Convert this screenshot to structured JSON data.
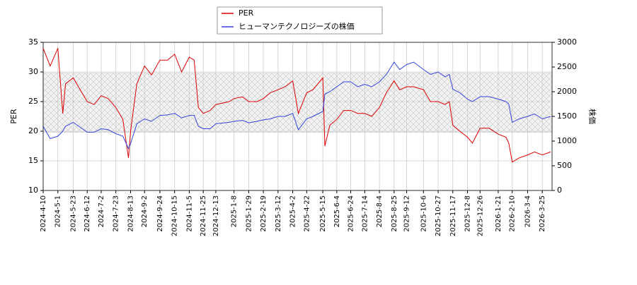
{
  "chart_data": {
    "type": "line",
    "x": [
      "2024-4-10",
      "2024-4-20",
      "2024-5-1",
      "2024-5-8",
      "2024-5-12",
      "2024-5-23",
      "2024-6-2",
      "2024-6-12",
      "2024-6-22",
      "2024-7-2",
      "2024-7-12",
      "2024-7-23",
      "2024-8-2",
      "2024-8-10",
      "2024-8-13",
      "2024-8-22",
      "2024-9-2",
      "2024-9-12",
      "2024-9-24",
      "2024-10-5",
      "2024-10-15",
      "2024-10-25",
      "2024-11-5",
      "2024-11-12",
      "2024-11-18",
      "2024-11-25",
      "2024-12-5",
      "2024-12-13",
      "2025-1-1",
      "2025-1-8",
      "2025-1-20",
      "2025-1-29",
      "2025-2-10",
      "2025-2-19",
      "2025-3-1",
      "2025-3-12",
      "2025-3-22",
      "2025-4-2",
      "2025-4-10",
      "2025-4-22",
      "2025-5-1",
      "2025-5-15",
      "2025-5-18",
      "2025-5-25",
      "2025-6-4",
      "2025-6-14",
      "2025-6-24",
      "2025-7-4",
      "2025-7-14",
      "2025-7-24",
      "2025-8-4",
      "2025-8-14",
      "2025-8-25",
      "2025-9-2",
      "2025-9-12",
      "2025-9-22",
      "2025-10-6",
      "2025-10-16",
      "2025-10-27",
      "2025-11-6",
      "2025-11-12",
      "2025-11-17",
      "2025-11-27",
      "2025-12-8",
      "2025-12-15",
      "2025-12-26",
      "2026-1-8",
      "2026-1-21",
      "2026-2-1",
      "2026-2-5",
      "2026-2-10",
      "2026-2-20",
      "2026-3-4",
      "2026-3-14",
      "2026-3-25",
      "2026-4-6"
    ],
    "series": [
      {
        "name": "PER",
        "color": "#dd0000",
        "values": [
          34,
          31,
          34,
          23,
          28,
          29,
          27,
          25,
          24.5,
          26,
          25.5,
          24,
          22,
          15.5,
          20,
          28,
          31,
          29.5,
          32,
          32,
          33,
          30,
          32.5,
          32,
          24,
          23,
          23.5,
          24.5,
          25,
          25.5,
          25.8,
          25,
          25,
          25.5,
          26.5,
          27,
          27.5,
          28.5,
          23,
          26.5,
          27,
          29,
          17.5,
          21,
          22,
          23.5,
          23.5,
          23,
          23,
          22.5,
          24,
          26.5,
          28.5,
          27,
          27.5,
          27.5,
          27,
          25,
          25,
          24.5,
          25,
          21,
          20,
          19,
          18,
          20.5,
          20.5,
          19.5,
          19,
          18,
          14.8,
          15.5,
          16,
          16.5,
          16,
          16.5
        ]
      },
      {
        "name": "ヒューマンテクノロジーズの株価",
        "color": "#3344dd",
        "axis": "y2",
        "values": [
          1300,
          1050,
          1100,
          1200,
          1300,
          1380,
          1280,
          1180,
          1180,
          1250,
          1230,
          1150,
          1100,
          850,
          950,
          1350,
          1450,
          1400,
          1520,
          1530,
          1560,
          1470,
          1520,
          1520,
          1300,
          1250,
          1250,
          1350,
          1380,
          1400,
          1420,
          1370,
          1400,
          1430,
          1450,
          1500,
          1500,
          1560,
          1230,
          1450,
          1500,
          1600,
          1950,
          2000,
          2100,
          2200,
          2200,
          2100,
          2150,
          2100,
          2200,
          2350,
          2600,
          2450,
          2550,
          2600,
          2450,
          2350,
          2400,
          2300,
          2350,
          2050,
          1980,
          1850,
          1800,
          1900,
          1900,
          1850,
          1800,
          1750,
          1380,
          1450,
          1500,
          1550,
          1450,
          1500
        ]
      }
    ],
    "ylabel": "PER",
    "y2label": "株価",
    "xlim": [
      "2024-4-10",
      "2026-4-8"
    ],
    "xticks": [
      "2024-4-10",
      "2024-5-1",
      "2024-5-23",
      "2024-6-12",
      "2024-7-2",
      "2024-7-23",
      "2024-8-13",
      "2024-9-2",
      "2024-9-24",
      "2024-10-15",
      "2024-11-5",
      "2024-11-25",
      "2024-12-13",
      "2025-1-8",
      "2025-1-29",
      "2025-2-19",
      "2025-3-12",
      "2025-4-2",
      "2025-4-22",
      "2025-5-15",
      "2025-6-4",
      "2025-6-24",
      "2025-7-14",
      "2025-8-4",
      "2025-8-25",
      "2025-9-12",
      "2025-10-6",
      "2025-10-27",
      "2025-11-17",
      "2025-12-8",
      "2025-12-26",
      "2026-1-21",
      "2026-2-10",
      "2026-3-4",
      "2026-3-25"
    ],
    "ylim": [
      10,
      35
    ],
    "yticks": [
      10,
      15,
      20,
      25,
      30,
      35
    ],
    "y2lim": [
      0,
      3000
    ],
    "y2ticks": [
      0,
      500,
      1000,
      1500,
      2000,
      2500,
      3000
    ],
    "shaded_range": [
      19.8,
      29.8
    ],
    "grid": true,
    "legend": "top"
  }
}
